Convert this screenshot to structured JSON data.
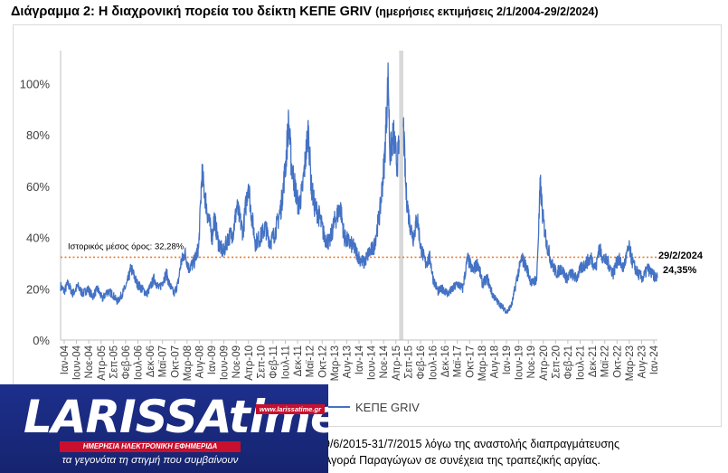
{
  "title": "Διάγραμμα 2: Η διαχρονική πορεία του δείκτη ΚΕΠΕ GRIV",
  "subtitle": "(ημερήσιες εκτιμήσεις 2/1/2004-29/2/2024)",
  "note_lines": [
    "9/6/2015-31/7/2015 λόγω της αναστολής διαπραγμάτευσης",
    "Αγορά Παραγώγων σε συνέχεια της τραπεζικής αργίας."
  ],
  "logo": {
    "wordmark": "LARISSAtime",
    "url": "www.larissatime.gr",
    "band": "ΗΜΕΡΗΣΙΑ ΗΛΕΚΤΡΟΝΙΚΗ ΕΦΗΜΕΡΙΔΑ",
    "tagline": "τα γεγονότα τη στιγμή που συμβαίνουν"
  },
  "colors": {
    "series": "#4472c4",
    "mean_line": "#ed7d31",
    "gap_band": "#d9d9d9",
    "logo_bg": "#1d2f8c",
    "logo_red": "#c8102e"
  },
  "chart_data": {
    "type": "line",
    "y_unit": "%",
    "ylim": [
      0,
      110
    ],
    "yticks": [
      0,
      20,
      40,
      60,
      80,
      100
    ],
    "ytick_labels": [
      "0%",
      "20%",
      "40%",
      "60%",
      "80%",
      "100%"
    ],
    "x_range": [
      "2004-01-02",
      "2024-02-29"
    ],
    "xtick_labels": [
      "Ιαν-04",
      "Ιουν-04",
      "Νοε-04",
      "Απρ-05",
      "Σεπ-05",
      "Φεβ-06",
      "Ιουλ-06",
      "Δεκ-06",
      "Μαϊ-07",
      "Οκτ-07",
      "Μαρ-08",
      "Αυγ-08",
      "Ιαν-09",
      "Ιουν-09",
      "Νοε-09",
      "Απρ-10",
      "Σεπ-10",
      "Φεβ-11",
      "Ιουλ-11",
      "Δεκ-11",
      "Μαϊ-12",
      "Οκτ-12",
      "Μαρ-13",
      "Αυγ-13",
      "Ιαν-14",
      "Ιουν-14",
      "Νοε-14",
      "Απρ-15",
      "Σεπ-15",
      "Φεβ-16",
      "Ιουλ-16",
      "Δεκ-16",
      "Μαϊ-17",
      "Οκτ-17",
      "Μαρ-18",
      "Αυγ-18",
      "Ιαν-19",
      "Ιουν-19",
      "Νοε-19",
      "Απρ-20",
      "Σεπ-20",
      "Φεβ-21",
      "Ιουλ-21",
      "Δεκ-21",
      "Μαϊ-22",
      "Οκτ-22",
      "Μαρ-23",
      "Αυγ-23",
      "Ιαν-24"
    ],
    "gap_band": {
      "from": "2015-06-09",
      "to": "2015-07-31"
    },
    "mean_line": {
      "value": 32.28,
      "label": "Ιστορικός μέσος όρος: 32,28%"
    },
    "end_annotation": {
      "date_label": "29/2/2024",
      "value_label": "24,35%"
    },
    "legend": {
      "position": "bottom",
      "entry": "ΚΕΠΕ GRIV"
    },
    "series": [
      {
        "name": "ΚΕΠΕ GRIV",
        "points": [
          [
            "2004-01-02",
            21
          ],
          [
            "2004-02-15",
            19
          ],
          [
            "2004-04-01",
            22
          ],
          [
            "2004-06-01",
            18
          ],
          [
            "2004-08-01",
            21
          ],
          [
            "2004-10-01",
            18
          ],
          [
            "2004-12-01",
            20
          ],
          [
            "2005-02-01",
            17
          ],
          [
            "2005-04-01",
            20
          ],
          [
            "2005-06-01",
            16
          ],
          [
            "2005-08-01",
            19
          ],
          [
            "2005-10-01",
            18
          ],
          [
            "2005-12-01",
            15
          ],
          [
            "2006-02-01",
            18
          ],
          [
            "2006-04-01",
            22
          ],
          [
            "2006-05-20",
            28
          ],
          [
            "2006-06-15",
            26
          ],
          [
            "2006-08-01",
            22
          ],
          [
            "2006-10-01",
            20
          ],
          [
            "2006-12-01",
            18
          ],
          [
            "2007-02-01",
            22
          ],
          [
            "2007-03-01",
            24
          ],
          [
            "2007-05-01",
            20
          ],
          [
            "2007-08-01",
            26
          ],
          [
            "2007-09-01",
            22
          ],
          [
            "2007-11-01",
            18
          ],
          [
            "2007-12-20",
            22
          ],
          [
            "2008-01-25",
            30
          ],
          [
            "2008-03-15",
            34
          ],
          [
            "2008-05-01",
            28
          ],
          [
            "2008-07-01",
            30
          ],
          [
            "2008-09-01",
            36
          ],
          [
            "2008-10-10",
            65
          ],
          [
            "2008-11-10",
            58
          ],
          [
            "2008-12-15",
            50
          ],
          [
            "2009-02-15",
            40
          ],
          [
            "2009-03-10",
            48
          ],
          [
            "2009-05-01",
            38
          ],
          [
            "2009-07-01",
            34
          ],
          [
            "2009-09-01",
            40
          ],
          [
            "2009-11-01",
            42
          ],
          [
            "2009-12-15",
            52
          ],
          [
            "2010-01-15",
            48
          ],
          [
            "2010-03-01",
            42
          ],
          [
            "2010-05-07",
            62
          ],
          [
            "2010-06-01",
            52
          ],
          [
            "2010-08-01",
            38
          ],
          [
            "2010-10-01",
            40
          ],
          [
            "2010-12-01",
            44
          ],
          [
            "2011-02-01",
            38
          ],
          [
            "2011-04-01",
            42
          ],
          [
            "2011-06-15",
            52
          ],
          [
            "2011-08-08",
            68
          ],
          [
            "2011-09-15",
            85
          ],
          [
            "2011-10-15",
            70
          ],
          [
            "2011-11-20",
            62
          ],
          [
            "2012-01-15",
            52
          ],
          [
            "2012-03-01",
            58
          ],
          [
            "2012-05-15",
            82
          ],
          [
            "2012-06-20",
            60
          ],
          [
            "2012-08-01",
            52
          ],
          [
            "2012-10-01",
            48
          ],
          [
            "2012-12-01",
            40
          ],
          [
            "2013-02-01",
            38
          ],
          [
            "2013-04-01",
            46
          ],
          [
            "2013-06-15",
            52
          ],
          [
            "2013-08-01",
            40
          ],
          [
            "2013-10-01",
            38
          ],
          [
            "2013-12-01",
            36
          ],
          [
            "2014-02-01",
            32
          ],
          [
            "2014-04-01",
            30
          ],
          [
            "2014-06-01",
            34
          ],
          [
            "2014-08-01",
            36
          ],
          [
            "2014-10-16",
            50
          ],
          [
            "2014-12-10",
            70
          ],
          [
            "2015-01-26",
            103
          ],
          [
            "2015-02-15",
            72
          ],
          [
            "2015-04-01",
            80
          ],
          [
            "2015-05-15",
            68
          ],
          [
            "2015-06-08",
            76
          ],
          [
            "2015-08-03",
            82
          ],
          [
            "2015-09-01",
            58
          ],
          [
            "2015-10-15",
            46
          ],
          [
            "2015-12-01",
            40
          ],
          [
            "2016-01-20",
            48
          ],
          [
            "2016-03-01",
            36
          ],
          [
            "2016-05-01",
            30
          ],
          [
            "2016-06-24",
            32
          ],
          [
            "2016-08-01",
            24
          ],
          [
            "2016-10-01",
            19
          ],
          [
            "2016-12-01",
            20
          ],
          [
            "2017-02-01",
            18
          ],
          [
            "2017-04-01",
            20
          ],
          [
            "2017-06-01",
            22
          ],
          [
            "2017-08-01",
            20
          ],
          [
            "2017-10-01",
            32
          ],
          [
            "2017-12-01",
            27
          ],
          [
            "2018-02-06",
            30
          ],
          [
            "2018-04-01",
            22
          ],
          [
            "2018-06-01",
            24
          ],
          [
            "2018-08-01",
            18
          ],
          [
            "2018-10-01",
            15
          ],
          [
            "2018-12-01",
            13
          ],
          [
            "2019-02-01",
            11
          ],
          [
            "2019-04-01",
            14
          ],
          [
            "2019-06-01",
            24
          ],
          [
            "2019-08-01",
            32
          ],
          [
            "2019-10-01",
            28
          ],
          [
            "2019-12-01",
            22
          ],
          [
            "2020-02-01",
            24
          ],
          [
            "2020-03-16",
            61
          ],
          [
            "2020-04-15",
            48
          ],
          [
            "2020-06-01",
            38
          ],
          [
            "2020-08-01",
            30
          ],
          [
            "2020-10-01",
            26
          ],
          [
            "2020-12-01",
            28
          ],
          [
            "2021-02-01",
            24
          ],
          [
            "2021-04-01",
            26
          ],
          [
            "2021-06-01",
            24
          ],
          [
            "2021-08-01",
            28
          ],
          [
            "2021-10-01",
            30
          ],
          [
            "2021-12-01",
            32
          ],
          [
            "2022-02-01",
            28
          ],
          [
            "2022-03-07",
            36
          ],
          [
            "2022-05-01",
            32
          ],
          [
            "2022-07-01",
            30
          ],
          [
            "2022-09-01",
            26
          ],
          [
            "2022-11-01",
            32
          ],
          [
            "2023-01-01",
            28
          ],
          [
            "2023-03-15",
            36
          ],
          [
            "2023-05-01",
            30
          ],
          [
            "2023-07-01",
            26
          ],
          [
            "2023-09-01",
            24
          ],
          [
            "2023-11-01",
            28
          ],
          [
            "2023-12-15",
            26
          ],
          [
            "2024-01-15",
            25
          ],
          [
            "2024-02-29",
            24.35
          ]
        ]
      }
    ]
  }
}
